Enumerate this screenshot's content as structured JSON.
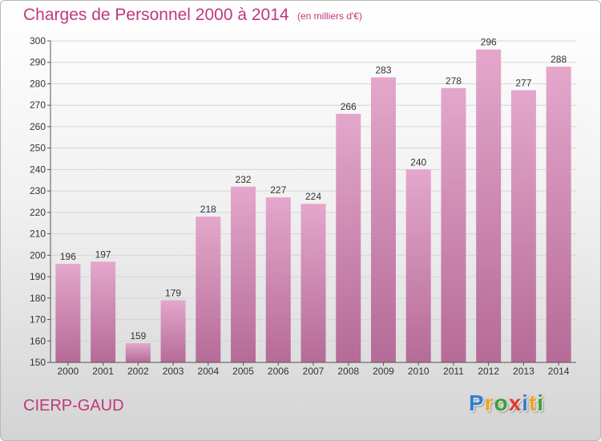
{
  "title": "Charges de Personnel 2000 à 2014",
  "subtitle": "(en milliers d'€)",
  "commune": "CIERP-GAUD",
  "logo": {
    "letters": [
      "P",
      "r",
      "o",
      "x",
      "i",
      "t",
      "i"
    ],
    "colors": [
      "#2f7fd0",
      "#f0a020",
      "#3aa036",
      "#e03a2e",
      "#2f7fd0",
      "#f0a020",
      "#3aa036"
    ]
  },
  "colors": {
    "title": "#c0387e",
    "bar_top": "#e4a7cb",
    "bar_bottom": "#b56b97",
    "gridline": "#d6d6d6",
    "axis": "#555555"
  },
  "chart_data": {
    "type": "bar",
    "categories": [
      "2000",
      "2001",
      "2002",
      "2003",
      "2004",
      "2005",
      "2006",
      "2007",
      "2008",
      "2009",
      "2010",
      "2011",
      "2012",
      "2013",
      "2014"
    ],
    "values": [
      196,
      197,
      159,
      179,
      218,
      232,
      227,
      224,
      266,
      283,
      240,
      278,
      296,
      277,
      288
    ],
    "ylim": [
      150,
      300
    ],
    "yticks": [
      150,
      160,
      170,
      180,
      190,
      200,
      210,
      220,
      230,
      240,
      250,
      260,
      270,
      280,
      290,
      300
    ],
    "grid": true,
    "data_labels": true
  }
}
